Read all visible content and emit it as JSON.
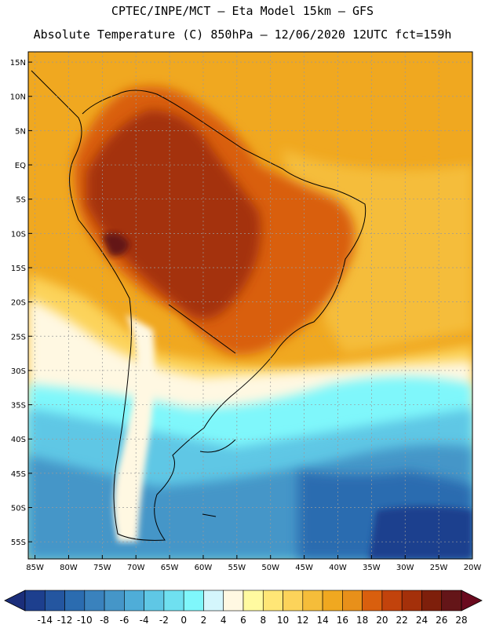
{
  "header": {
    "line1": "CPTEC/INPE/MCT –  Eta Model 15km – GFS",
    "line2": "Absolute Temperature (C) 850hPa – 12/06/2020 12UTC fct=159h"
  },
  "map": {
    "lat_labels": [
      "15N",
      "10N",
      "5N",
      "EQ",
      "5S",
      "10S",
      "15S",
      "20S",
      "25S",
      "30S",
      "35S",
      "40S",
      "45S",
      "50S",
      "55S"
    ],
    "lon_labels": [
      "85W",
      "80W",
      "75W",
      "70W",
      "65W",
      "60W",
      "55W",
      "50W",
      "45W",
      "40W",
      "35W",
      "30W",
      "25W",
      "20W"
    ],
    "lat_range": [
      16.5,
      -57.5
    ],
    "lon_range": [
      -86,
      -20
    ],
    "fields": [
      {
        "name": "tropical-warm-region",
        "temp": 22
      },
      {
        "name": "amazon-hot-core",
        "temp": 26
      },
      {
        "name": "southern-cold-ocean",
        "temp": -8
      }
    ]
  },
  "colorbar": {
    "labels": [
      "-14",
      "-12",
      "-10",
      "-8",
      "-6",
      "-4",
      "-2",
      "0",
      "2",
      "4",
      "6",
      "8",
      "10",
      "12",
      "14",
      "16",
      "18",
      "20",
      "22",
      "24",
      "26",
      "28"
    ],
    "colors": [
      "#1d3f8e",
      "#2456a0",
      "#2b6cb0",
      "#3a82bd",
      "#4596c8",
      "#4fadd8",
      "#5fc7e5",
      "#6fe0f0",
      "#7ff7fb",
      "#d4f6fc",
      "#fff8e2",
      "#fffaa0",
      "#ffe676",
      "#fcd35a",
      "#f5bd3a",
      "#f0a820",
      "#e8901a",
      "#d95f0e",
      "#c2430c",
      "#a4300a",
      "#7e1f0b",
      "#641518"
    ],
    "under_color": "#1b2e7a",
    "over_color": "#6a0a1e"
  }
}
